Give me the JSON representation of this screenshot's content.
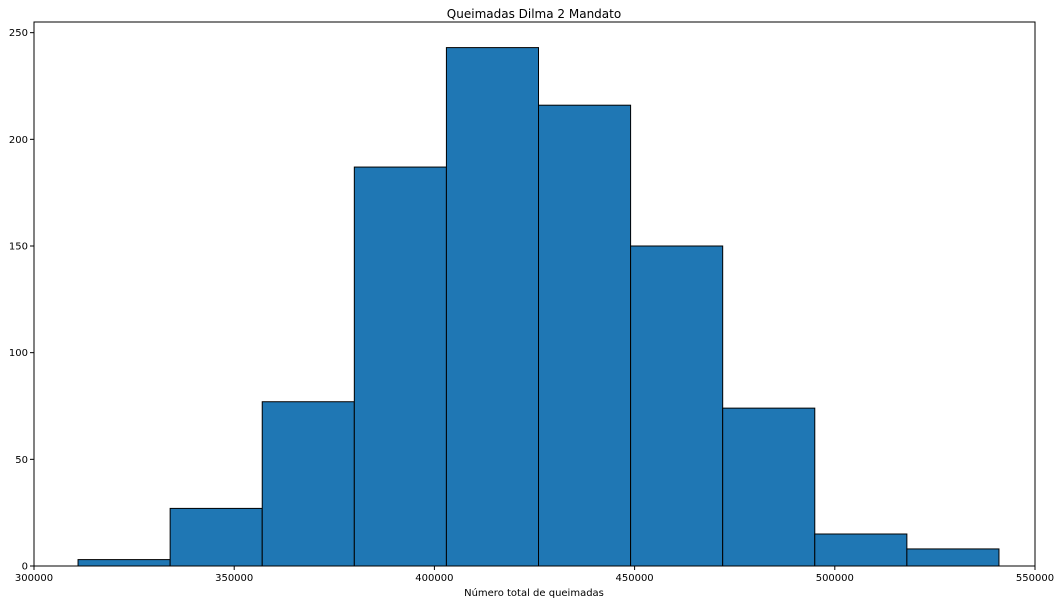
{
  "chart_data": {
    "type": "bar",
    "subtype": "histogram",
    "title": "Queimadas Dilma 2 Mandato",
    "xlabel": "Número total de queimadas",
    "ylabel": "",
    "xlim": [
      300000,
      550000
    ],
    "ylim": [
      0,
      255
    ],
    "xticks": [
      300000,
      350000,
      400000,
      450000,
      500000,
      550000
    ],
    "yticks": [
      0,
      50,
      100,
      150,
      200,
      250
    ],
    "bin_edges": [
      311000,
      334000,
      357000,
      380000,
      403000,
      426000,
      449000,
      472000,
      495000,
      518000,
      541000
    ],
    "values": [
      3,
      27,
      77,
      187,
      243,
      216,
      150,
      74,
      15,
      8
    ],
    "colors": {
      "bar": "#1f77b4",
      "edge": "#000000"
    },
    "grid": false,
    "legend": "none"
  }
}
